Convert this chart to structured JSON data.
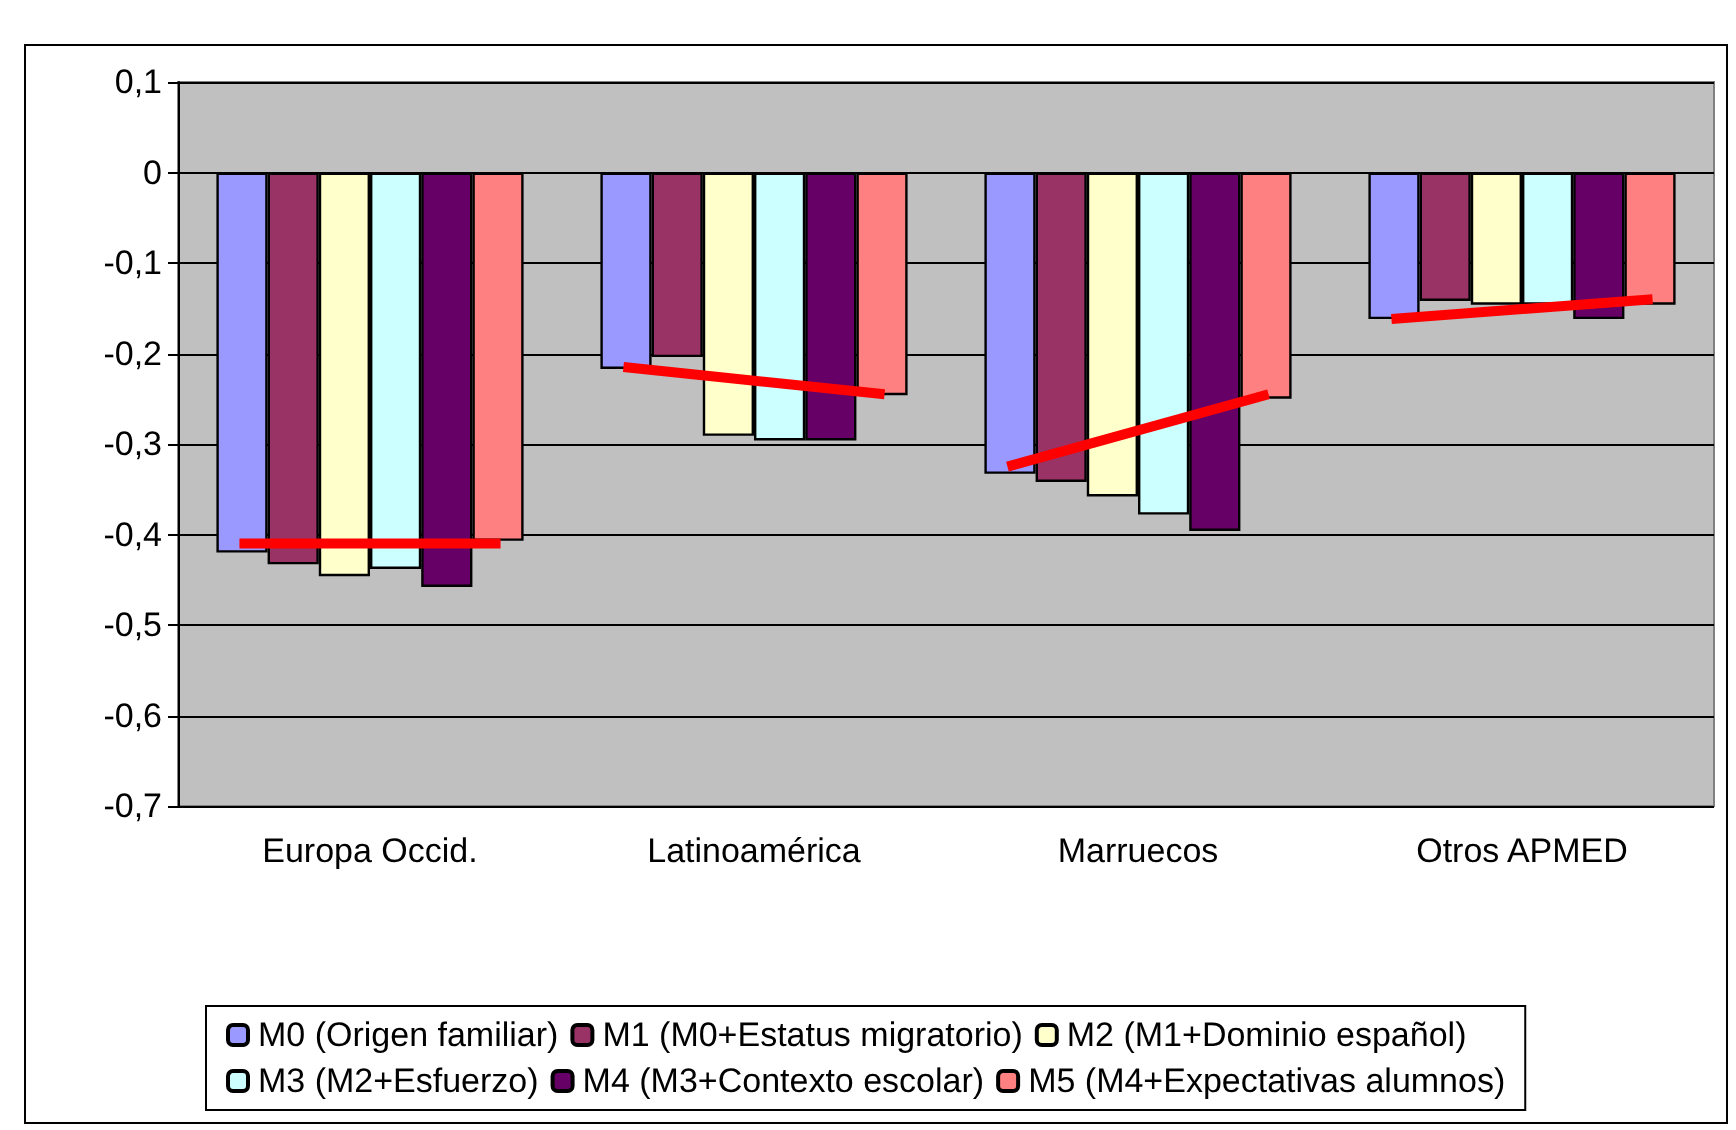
{
  "chart_data": {
    "type": "bar",
    "categories": [
      "Europa Occid.",
      "Latinoamérica",
      "Marruecos",
      "Otros APMED"
    ],
    "series": [
      {
        "name": "M0 (Origen familiar)",
        "color": "#9999ff",
        "values": [
          -0.42,
          -0.217,
          -0.333,
          -0.162
        ]
      },
      {
        "name": "M1 (M0+Estatus migratorio)",
        "color": "#993366",
        "values": [
          -0.433,
          -0.204,
          -0.342,
          -0.142
        ]
      },
      {
        "name": "M2 (M1+Dominio español)",
        "color": "#ffffcc",
        "values": [
          -0.446,
          -0.291,
          -0.358,
          -0.146
        ]
      },
      {
        "name": "M3 (M2+Esfuerzo)",
        "color": "#ccffff",
        "values": [
          -0.438,
          -0.296,
          -0.378,
          -0.146
        ]
      },
      {
        "name": "M4 (M3+Contexto escolar)",
        "color": "#660066",
        "values": [
          -0.458,
          -0.296,
          -0.396,
          -0.162
        ]
      },
      {
        "name": "M5 (M4+Expectativas alumnos)",
        "color": "#ff8080",
        "values": [
          -0.407,
          -0.246,
          -0.25,
          -0.146
        ]
      }
    ],
    "ylim": [
      -0.7,
      0.1
    ],
    "yticks": [
      {
        "value": -0.7,
        "label": "-0,7"
      },
      {
        "value": -0.6,
        "label": "-0,6"
      },
      {
        "value": -0.5,
        "label": "-0,5"
      },
      {
        "value": -0.4,
        "label": "-0,4"
      },
      {
        "value": -0.3,
        "label": "-0,3"
      },
      {
        "value": -0.2,
        "label": "-0,2"
      },
      {
        "value": -0.1,
        "label": "-0,1"
      },
      0,
      {
        "value": 0.1,
        "label": "0,1"
      }
    ],
    "grid": "y",
    "legend": "bottom"
  }
}
